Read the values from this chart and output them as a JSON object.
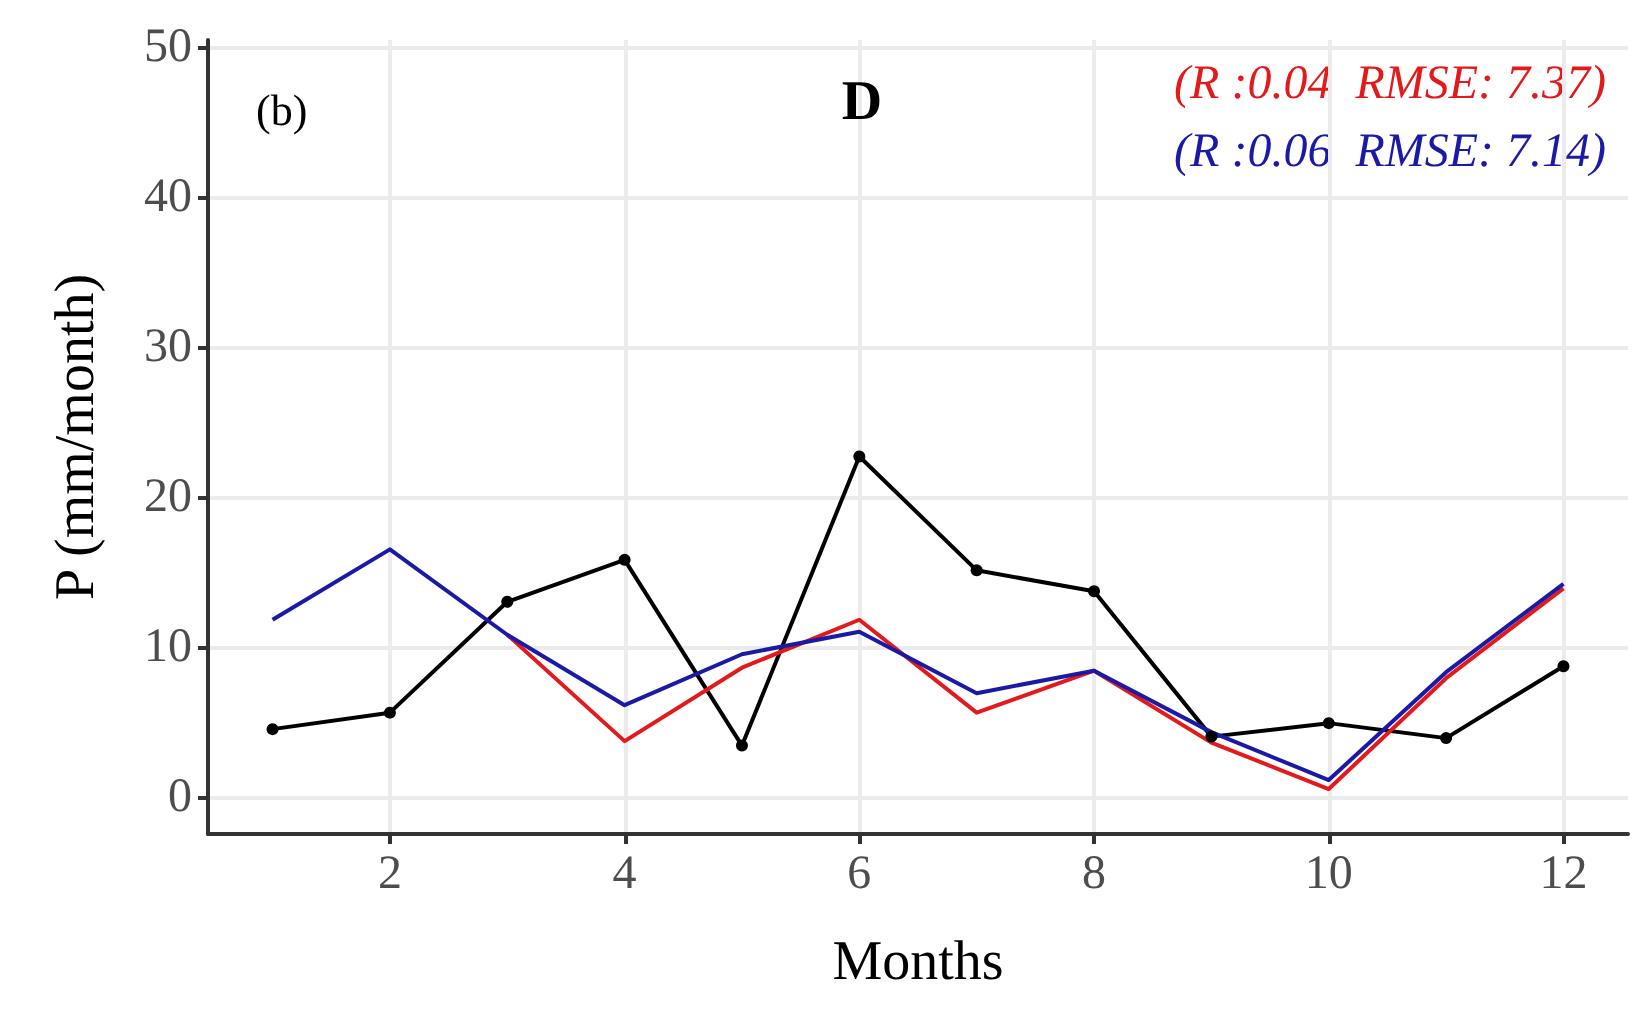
{
  "chart_data": {
    "type": "line",
    "title": "D",
    "xlabel": "Months",
    "ylabel": "P (mm/month)",
    "x": [
      1,
      2,
      3,
      4,
      5,
      6,
      7,
      8,
      9,
      10,
      11,
      12
    ],
    "series": [
      {
        "color": "#000000",
        "marker": "circle",
        "values": [
          4.5,
          5.6,
          13.0,
          15.8,
          3.4,
          22.7,
          15.1,
          13.7,
          4.0,
          4.9,
          3.9,
          8.7
        ]
      },
      {
        "color": "#e31a1c",
        "marker": "none",
        "values": [
          null,
          null,
          10.8,
          3.7,
          8.6,
          11.8,
          5.6,
          8.4,
          3.6,
          0.5,
          7.9,
          13.9
        ]
      },
      {
        "color": "#1a1aa6",
        "marker": "none",
        "values": [
          11.8,
          16.5,
          10.8,
          6.1,
          9.5,
          11.0,
          6.9,
          8.4,
          4.3,
          1.1,
          8.3,
          14.2
        ]
      }
    ],
    "annotations": [
      "(b)",
      "(R :0.04  RMSE: 7.37)",
      "(R :0.06  RMSE: 7.14)"
    ],
    "xlim": [
      0.45,
      12.55
    ],
    "xticks": [
      2,
      4,
      6,
      8,
      10,
      12
    ],
    "ylim": [
      -2.5,
      50.5
    ],
    "yticks": [
      0,
      10,
      20,
      30,
      40,
      50
    ],
    "grid": true,
    "line_style": "solid"
  }
}
